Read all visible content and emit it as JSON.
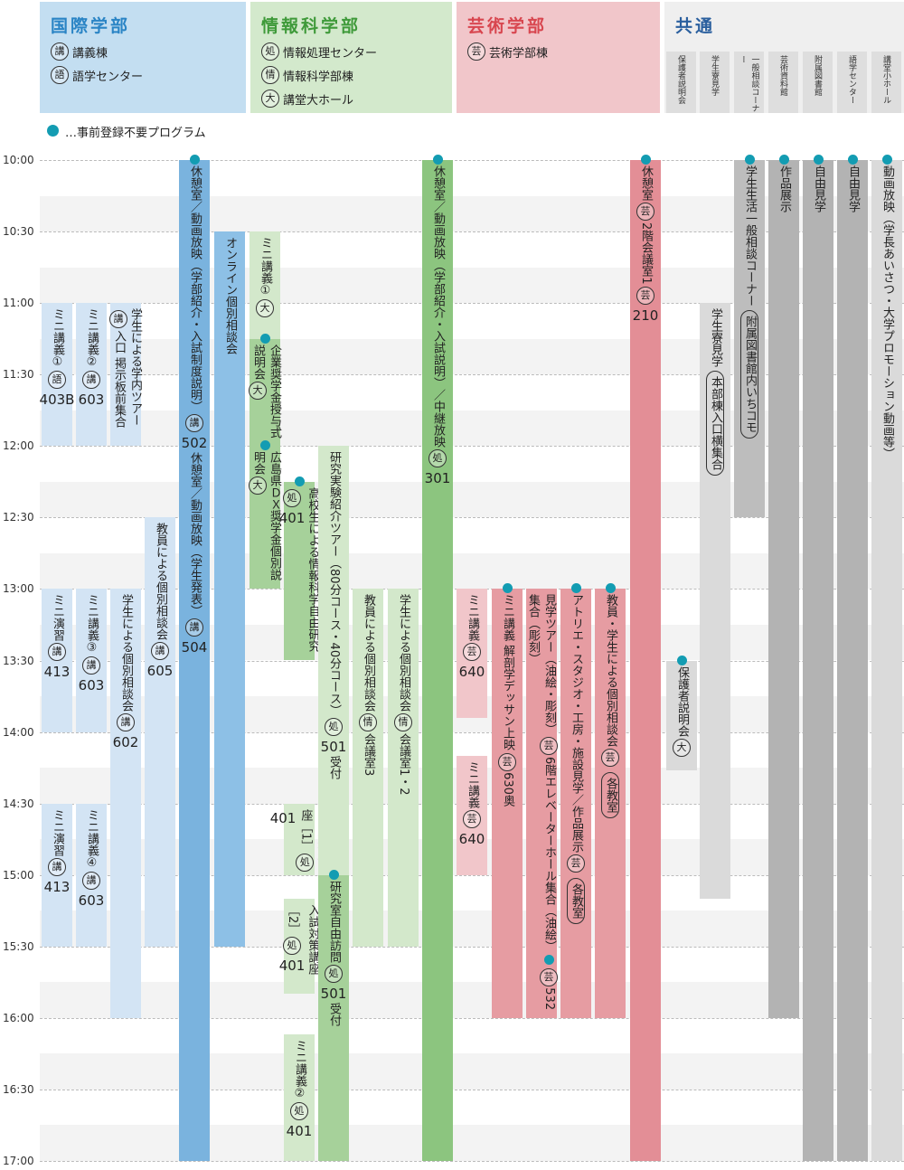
{
  "departments": [
    {
      "title": "国際学部",
      "buildings": [
        {
          "badge": "講",
          "name": "講義棟"
        },
        {
          "badge": "語",
          "name": "語学センター"
        }
      ]
    },
    {
      "title": "情報科学部",
      "buildings": [
        {
          "badge": "処",
          "name": "情報処理センター"
        },
        {
          "badge": "情",
          "name": "情報科学部棟"
        },
        {
          "badge": "大",
          "name": "講堂大ホール"
        }
      ]
    },
    {
      "title": "芸術学部",
      "buildings": [
        {
          "badge": "芸",
          "name": "芸術学部棟"
        }
      ]
    }
  ],
  "common": {
    "title": "共通",
    "columns": [
      "保護者説明会",
      "学生寮見学",
      "一般相談コーナー",
      "芸術資料館",
      "附属図書館",
      "語学センター",
      "講堂小ホール"
    ]
  },
  "legend": "…事前登録不要プログラム",
  "times": [
    "10:00",
    "10:30",
    "11:00",
    "11:30",
    "12:00",
    "12:30",
    "13:00",
    "13:30",
    "14:00",
    "14:30",
    "15:00",
    "15:30",
    "16:00",
    "16:30",
    "17:00"
  ],
  "events": [
    {
      "parts": [
        {
          "t": "ミニ講義①"
        },
        {
          "b": "語"
        },
        {
          "n": "403B"
        }
      ]
    },
    {
      "parts": [
        {
          "t": "ミニ講義②"
        },
        {
          "b": "講"
        },
        {
          "n": "603"
        }
      ]
    },
    {
      "parts": [
        {
          "t": "学生による学内ツアー"
        },
        {
          "b": "講"
        },
        {
          "t": "入口 掲示板前集合"
        }
      ]
    },
    {
      "parts": [
        {
          "t": "教員による個別相談会"
        },
        {
          "b": "講"
        },
        {
          "n": "605"
        }
      ]
    },
    {
      "parts": [
        {
          "t": "休憩室／動画放映（学部紹介・入試制度説明）"
        },
        {
          "b": "講"
        },
        {
          "n": "502"
        },
        {
          "t": "休憩室／動画放映（学生発表）"
        },
        {
          "b": "講"
        },
        {
          "n": "504"
        }
      ]
    },
    {
      "parts": [
        {
          "t": "オンライン個別相談会"
        }
      ]
    },
    {
      "parts": [
        {
          "t": "ミニ演習"
        },
        {
          "b": "講"
        },
        {
          "n": "413"
        }
      ]
    },
    {
      "parts": [
        {
          "t": "ミニ講義③"
        },
        {
          "b": "講"
        },
        {
          "n": "603"
        }
      ]
    },
    {
      "parts": [
        {
          "t": "学生による個別相談会"
        },
        {
          "b": "講"
        },
        {
          "n": "602"
        }
      ]
    },
    {
      "parts": [
        {
          "t": "ミニ演習"
        },
        {
          "b": "講"
        },
        {
          "n": "413"
        }
      ]
    },
    {
      "parts": [
        {
          "t": "ミニ講義④"
        },
        {
          "b": "講"
        },
        {
          "n": "603"
        }
      ]
    },
    {
      "parts": [
        {
          "t": "ミニ講義①"
        },
        {
          "b": "大"
        }
      ]
    },
    {
      "parts": [
        {
          "t": "企業奨学金授与式説明会"
        },
        {
          "b": "大"
        }
      ]
    },
    {
      "parts": [
        {
          "t": "広島県ＤＸ奨学金個別説明会"
        },
        {
          "b": "大"
        }
      ]
    },
    {
      "parts": [
        {
          "t": "高校生による情報科学自由研究"
        },
        {
          "b": "処"
        },
        {
          "n": "401"
        }
      ]
    },
    {
      "parts": [
        {
          "t": "入試対策講座［1］"
        },
        {
          "b": "処"
        },
        {
          "n": "401"
        }
      ]
    },
    {
      "parts": [
        {
          "t": "入試対策講座［2］"
        },
        {
          "b": "処"
        },
        {
          "n": "401"
        }
      ]
    },
    {
      "parts": [
        {
          "t": "ミニ講義②"
        },
        {
          "b": "処"
        },
        {
          "n": "401"
        }
      ]
    },
    {
      "parts": [
        {
          "t": "研究実験紹介ツアー（80分コース・40分コース）"
        },
        {
          "b": "処"
        },
        {
          "n": "501"
        },
        {
          "t": "受付"
        }
      ]
    },
    {
      "parts": [
        {
          "t": "研究室自由訪問"
        },
        {
          "b": "処"
        },
        {
          "n": "501"
        },
        {
          "t": "受付"
        }
      ]
    },
    {
      "parts": [
        {
          "t": "教員による個別相談会"
        },
        {
          "b": "情"
        },
        {
          "t": "会議室3"
        }
      ]
    },
    {
      "parts": [
        {
          "t": "学生による個別相談会"
        },
        {
          "b": "情"
        },
        {
          "t": "会議室1・2"
        }
      ]
    },
    {
      "parts": [
        {
          "t": "休憩室／動画放映（学部紹介・入試説明）／中継放映"
        },
        {
          "b": "処"
        },
        {
          "n": "301"
        }
      ]
    },
    {
      "parts": [
        {
          "t": "ミニ講義"
        },
        {
          "b": "芸"
        },
        {
          "n": "640"
        }
      ]
    },
    {
      "parts": [
        {
          "t": "ミニ講義"
        },
        {
          "b": "芸"
        },
        {
          "n": "640"
        }
      ]
    },
    {
      "parts": [
        {
          "t": "ミニ講義 解剖学デッサン上映"
        },
        {
          "b": "芸"
        },
        {
          "t": "630奥"
        }
      ]
    },
    {
      "parts": [
        {
          "t": "見学ツアー（油絵・彫刻）"
        },
        {
          "b": "芸"
        },
        {
          "t": "6階エレベーターホール集合（油絵）"
        },
        {
          "b": "芸"
        },
        {
          "t": "532集合（彫刻）"
        }
      ]
    },
    {
      "parts": [
        {
          "t": "アトリエ・スタジオ・工房・施設見学／作品展示"
        },
        {
          "b": "芸"
        },
        {
          "p": "各教室"
        }
      ]
    },
    {
      "parts": [
        {
          "t": "教員・学生による個別相談会"
        },
        {
          "b": "芸"
        },
        {
          "p": "各教室"
        }
      ]
    },
    {
      "parts": [
        {
          "t": "休憩室"
        },
        {
          "b": "芸"
        },
        {
          "t": "2階会議室1"
        },
        {
          "b": "芸"
        },
        {
          "n": "210"
        }
      ]
    },
    {
      "parts": [
        {
          "t": "保護者説明会"
        },
        {
          "b": "大"
        }
      ]
    },
    {
      "parts": [
        {
          "t": "学生寮見学"
        },
        {
          "p": "本部棟入口横集合"
        }
      ]
    },
    {
      "parts": [
        {
          "t": "学生生活一般相談コーナー"
        },
        {
          "p": "附属図書館内いちコモ"
        }
      ]
    },
    {
      "parts": [
        {
          "t": "作品展示"
        }
      ]
    },
    {
      "parts": [
        {
          "t": "自由見学"
        }
      ]
    },
    {
      "parts": [
        {
          "t": "自由見学"
        }
      ]
    },
    {
      "parts": [
        {
          "t": "動画放映（学長あいさつ・大学プロモーション動画等）"
        }
      ]
    }
  ]
}
